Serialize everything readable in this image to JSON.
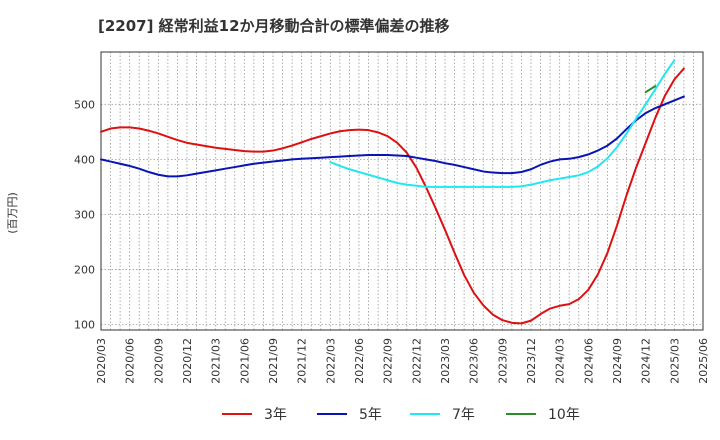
{
  "chart_data": {
    "type": "line",
    "title": "[2207]  経常利益12か月移動合計の標準偏差の推移",
    "ylabel": "(百万円)",
    "xlabel": "",
    "ylim": [
      90,
      595
    ],
    "y_ticks": [
      100,
      200,
      300,
      400,
      500
    ],
    "x_tick_labels": [
      "2020/03",
      "2020/06",
      "2020/09",
      "2020/12",
      "2021/03",
      "2021/06",
      "2021/09",
      "2021/12",
      "2022/03",
      "2022/06",
      "2022/09",
      "2022/12",
      "2023/03",
      "2023/06",
      "2023/09",
      "2023/12",
      "2024/03",
      "2024/06",
      "2024/09",
      "2024/12",
      "2025/03",
      "2025/06"
    ],
    "grid": true,
    "legend_position": "bottom",
    "series": [
      {
        "name": "3年",
        "color": "#dd1111",
        "start": "2020/03",
        "values": [
          450,
          456,
          458,
          458,
          456,
          452,
          447,
          441,
          435,
          430,
          427,
          424,
          421,
          419,
          417,
          415,
          414,
          414,
          416,
          420,
          425,
          431,
          437,
          442,
          447,
          451,
          453,
          454,
          453,
          449,
          442,
          430,
          412,
          385,
          350,
          312,
          272,
          230,
          190,
          158,
          135,
          118,
          108,
          103,
          102,
          107,
          119,
          129,
          134,
          137,
          146,
          163,
          191,
          230,
          280,
          335,
          385,
          430,
          475,
          515,
          545,
          565
        ]
      },
      {
        "name": "5年",
        "color": "#0a14b4",
        "start": "2020/03",
        "values": [
          400,
          396,
          392,
          388,
          383,
          377,
          372,
          369,
          369,
          371,
          374,
          377,
          380,
          383,
          386,
          389,
          392,
          394,
          396,
          398,
          400,
          401,
          402,
          403,
          404,
          405,
          406,
          407,
          408,
          408,
          408,
          407,
          406,
          403,
          400,
          397,
          393,
          390,
          386,
          382,
          378,
          376,
          375,
          375,
          377,
          382,
          390,
          396,
          400,
          401,
          404,
          409,
          416,
          425,
          438,
          455,
          471,
          484,
          493,
          500,
          507,
          514
        ]
      },
      {
        "name": "7年",
        "color": "#22e6f0",
        "start": "2022/03",
        "values": [
          395,
          388,
          382,
          377,
          372,
          367,
          362,
          357,
          354,
          352,
          350,
          350,
          350,
          350,
          350,
          350,
          350,
          350,
          350,
          350,
          351,
          354,
          358,
          362,
          365,
          368,
          371,
          377,
          387,
          402,
          422,
          447,
          474,
          500,
          527,
          555,
          580
        ]
      },
      {
        "name": "10年",
        "color": "#2e8b2e",
        "start": "2024/12",
        "values": [
          522,
          533
        ]
      }
    ]
  }
}
